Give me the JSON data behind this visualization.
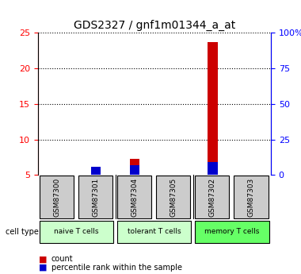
{
  "title": "GDS2327 / gnf1m01344_a_at",
  "samples": [
    "GSM87300",
    "GSM87301",
    "GSM87304",
    "GSM87305",
    "GSM87302",
    "GSM87303"
  ],
  "count_values": [
    5.0,
    5.2,
    7.3,
    5.0,
    23.7,
    5.0
  ],
  "percentile_values": [
    0.0,
    6.0,
    7.0,
    0.0,
    9.0,
    0.0
  ],
  "ylim_left": [
    5,
    25
  ],
  "ylim_right": [
    0,
    100
  ],
  "yticks_left": [
    5,
    10,
    15,
    20,
    25
  ],
  "yticks_right": [
    0,
    25,
    50,
    75,
    100
  ],
  "ytick_labels_right": [
    "0",
    "25",
    "50",
    "75",
    "100%"
  ],
  "cell_groups": [
    {
      "label": "naive T cells",
      "indices": [
        0,
        1
      ],
      "color": "#ccffcc"
    },
    {
      "label": "tolerant T cells",
      "indices": [
        2,
        3
      ],
      "color": "#ccffcc"
    },
    {
      "label": "memory T cells",
      "indices": [
        4,
        5
      ],
      "color": "#66ff66"
    }
  ],
  "bar_width": 0.25,
  "bar_color_count": "#cc0000",
  "bar_color_pct": "#0000cc",
  "baseline": 5.0,
  "sample_box_color": "#cccccc",
  "legend_count_label": "count",
  "legend_pct_label": "percentile rank within the sample",
  "cell_type_label": "cell type",
  "grid_color": "black",
  "grid_linestyle": "dotted"
}
